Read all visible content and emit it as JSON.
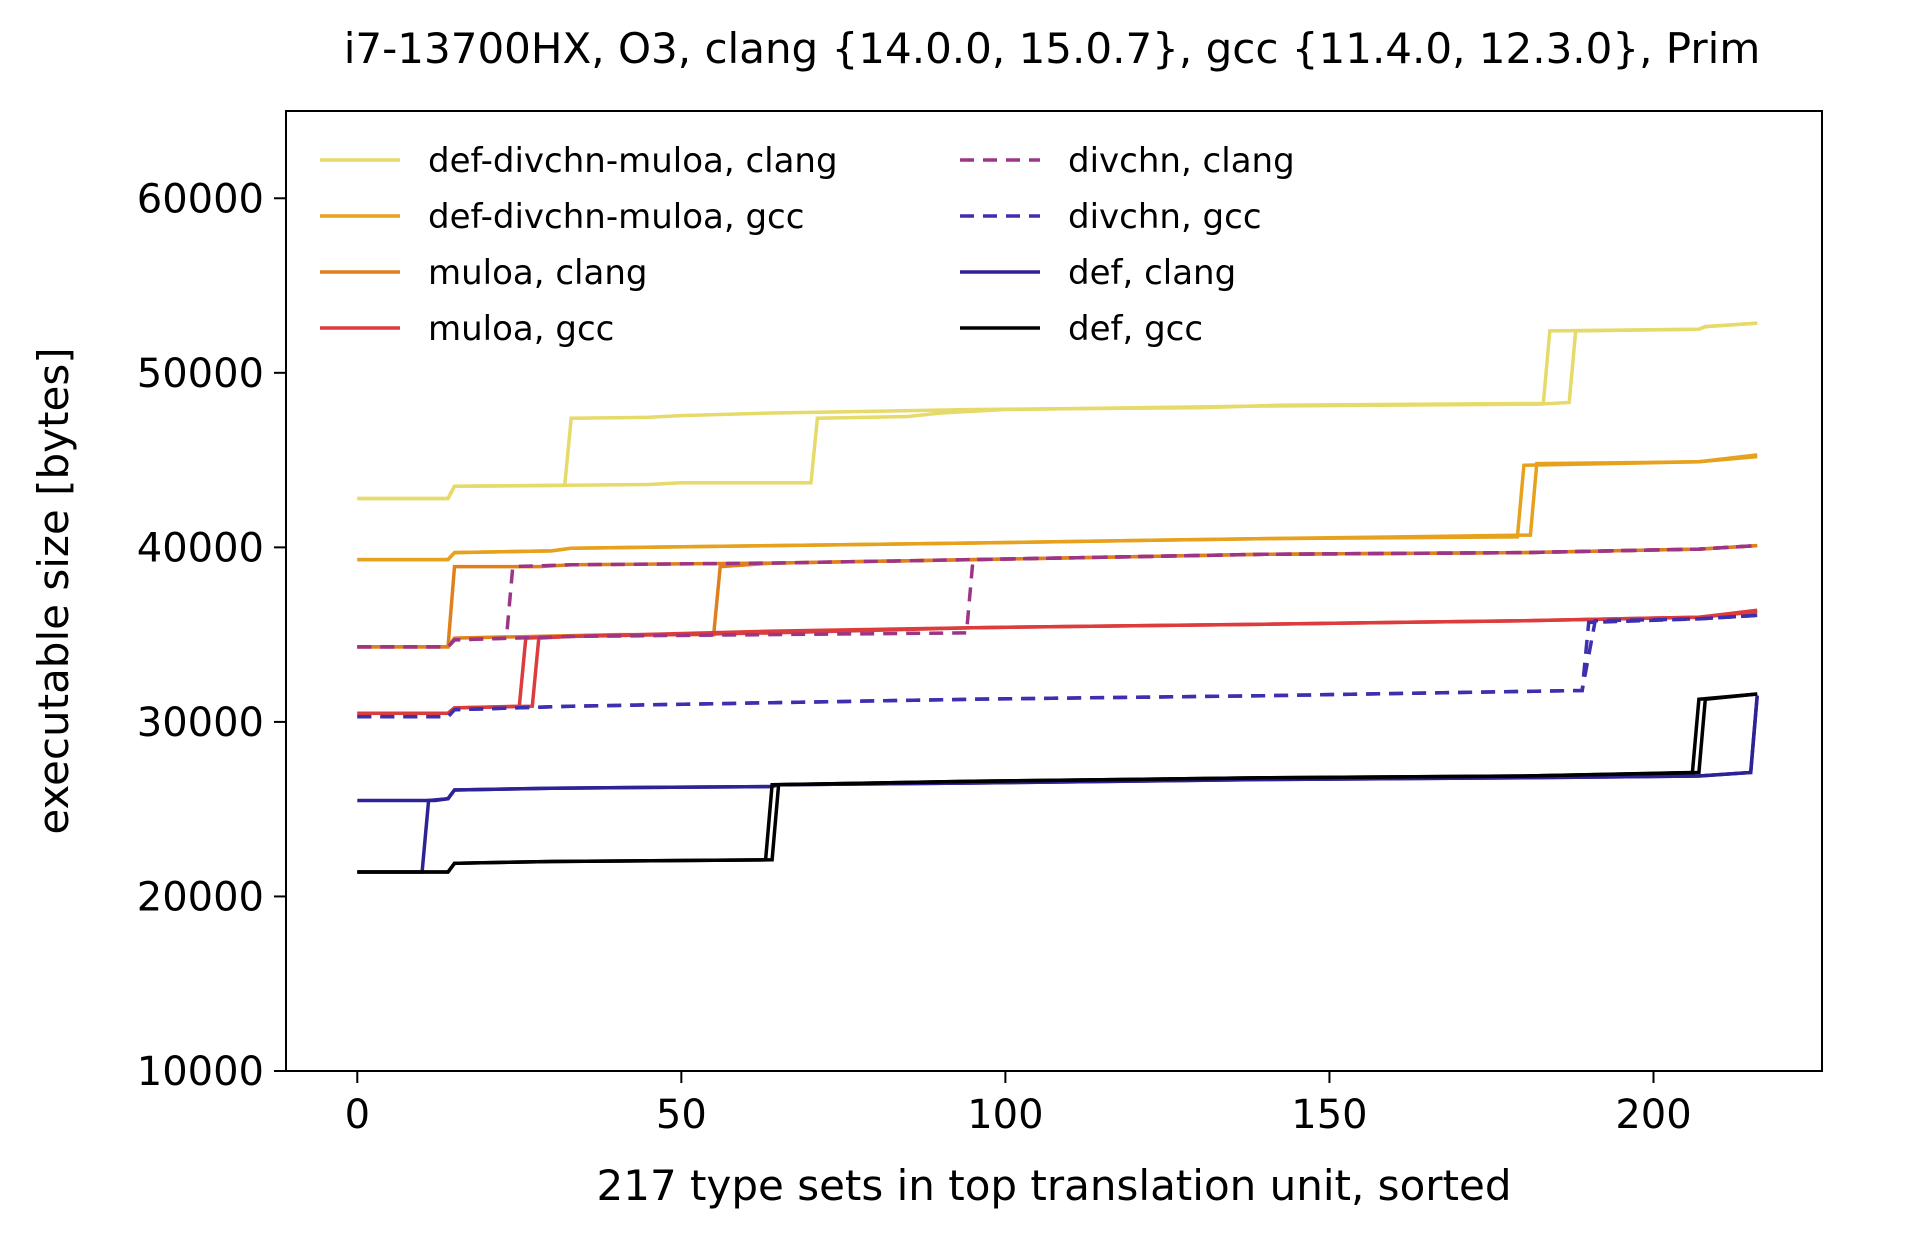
{
  "chart_data": {
    "type": "line",
    "title": "i7-13700HX, O3, clang {14.0.0, 15.0.7}, gcc {11.4.0, 12.3.0}, Prim",
    "xlabel": "217 type sets in top translation unit, sorted",
    "ylabel": "executable size [bytes]",
    "xlim": [
      -11,
      226
    ],
    "ylim": [
      10000,
      65000
    ],
    "xticks": [
      0,
      50,
      100,
      150,
      200
    ],
    "yticks": [
      10000,
      20000,
      30000,
      40000,
      50000,
      60000
    ],
    "grid": false,
    "legend": {
      "placement": "top-left",
      "columns": 2
    },
    "series": [
      {
        "name": "def-divchn-muloa, clang",
        "color": "#e6da6a",
        "dash": false,
        "points": [
          [
            0,
            42800
          ],
          [
            14,
            42800
          ],
          [
            15,
            43500
          ],
          [
            32,
            43550
          ],
          [
            33,
            47400
          ],
          [
            45,
            47450
          ],
          [
            50,
            47550
          ],
          [
            64,
            47700
          ],
          [
            95,
            47900
          ],
          [
            130,
            48000
          ],
          [
            143,
            48150
          ],
          [
            183,
            48250
          ],
          [
            184,
            52400
          ],
          [
            207,
            52500
          ],
          [
            208,
            52650
          ],
          [
            216,
            52850
          ]
        ]
      },
      {
        "name": "def-divchn-muloa, clang",
        "color": "#e6da6a",
        "dash": false,
        "points": [
          [
            0,
            42800
          ],
          [
            14,
            42800
          ],
          [
            15,
            43500
          ],
          [
            45,
            43600
          ],
          [
            50,
            43700
          ],
          [
            70,
            43700
          ],
          [
            71,
            47400
          ],
          [
            85,
            47500
          ],
          [
            90,
            47700
          ],
          [
            100,
            47900
          ],
          [
            140,
            48100
          ],
          [
            182,
            48200
          ],
          [
            187,
            48300
          ],
          [
            188,
            52400
          ],
          [
            207,
            52500
          ],
          [
            208,
            52650
          ],
          [
            216,
            52850
          ]
        ]
      },
      {
        "name": "def-divchn-muloa, gcc",
        "color": "#e6a21e",
        "dash": false,
        "points": [
          [
            0,
            39300
          ],
          [
            14,
            39300
          ],
          [
            15,
            39700
          ],
          [
            30,
            39800
          ],
          [
            33,
            39950
          ],
          [
            64,
            40100
          ],
          [
            95,
            40250
          ],
          [
            140,
            40500
          ],
          [
            179,
            40600
          ],
          [
            180,
            44700
          ],
          [
            207,
            44900
          ],
          [
            216,
            45200
          ]
        ]
      },
      {
        "name": "def-divchn-muloa, gcc",
        "color": "#e6a21e",
        "dash": false,
        "points": [
          [
            0,
            39300
          ],
          [
            14,
            39300
          ],
          [
            15,
            39700
          ],
          [
            30,
            39800
          ],
          [
            33,
            39950
          ],
          [
            64,
            40100
          ],
          [
            95,
            40250
          ],
          [
            140,
            40500
          ],
          [
            181,
            40700
          ],
          [
            182,
            44800
          ],
          [
            207,
            44900
          ],
          [
            216,
            45300
          ]
        ]
      },
      {
        "name": "muloa, clang",
        "color": "#e0801c",
        "dash": false,
        "points": [
          [
            0,
            34300
          ],
          [
            14,
            34300
          ],
          [
            15,
            38900
          ],
          [
            28,
            38900
          ],
          [
            33,
            39000
          ],
          [
            64,
            39100
          ],
          [
            95,
            39300
          ],
          [
            140,
            39600
          ],
          [
            180,
            39700
          ],
          [
            207,
            39900
          ],
          [
            216,
            40100
          ]
        ]
      },
      {
        "name": "muloa, clang",
        "color": "#e0801c",
        "dash": false,
        "points": [
          [
            0,
            34300
          ],
          [
            14,
            34300
          ],
          [
            15,
            34800
          ],
          [
            40,
            35000
          ],
          [
            55,
            35000
          ],
          [
            56,
            38900
          ],
          [
            64,
            39100
          ],
          [
            95,
            39300
          ],
          [
            140,
            39600
          ],
          [
            180,
            39700
          ],
          [
            207,
            39900
          ],
          [
            216,
            40100
          ]
        ]
      },
      {
        "name": "muloa, gcc",
        "color": "#dd3c3c",
        "dash": false,
        "points": [
          [
            0,
            30500
          ],
          [
            14,
            30500
          ],
          [
            15,
            30800
          ],
          [
            25,
            30900
          ],
          [
            26,
            34800
          ],
          [
            33,
            34900
          ],
          [
            64,
            35100
          ],
          [
            95,
            35400
          ],
          [
            140,
            35600
          ],
          [
            180,
            35800
          ],
          [
            207,
            36000
          ],
          [
            216,
            36300
          ]
        ]
      },
      {
        "name": "muloa, gcc",
        "color": "#dd3c3c",
        "dash": false,
        "points": [
          [
            0,
            30500
          ],
          [
            14,
            30500
          ],
          [
            15,
            30800
          ],
          [
            27,
            30900
          ],
          [
            28,
            34800
          ],
          [
            33,
            34900
          ],
          [
            64,
            35200
          ],
          [
            95,
            35400
          ],
          [
            140,
            35600
          ],
          [
            180,
            35800
          ],
          [
            207,
            36000
          ],
          [
            216,
            36400
          ]
        ]
      },
      {
        "name": "divchn, clang",
        "color": "#9c3585",
        "dash": true,
        "points": [
          [
            0,
            34300
          ],
          [
            14,
            34300
          ],
          [
            15,
            34700
          ],
          [
            23,
            34800
          ],
          [
            24,
            38900
          ],
          [
            33,
            39000
          ],
          [
            64,
            39100
          ],
          [
            95,
            39300
          ],
          [
            140,
            39600
          ],
          [
            180,
            39700
          ],
          [
            207,
            39900
          ],
          [
            216,
            40100
          ]
        ]
      },
      {
        "name": "divchn, clang",
        "color": "#9c3585",
        "dash": true,
        "points": [
          [
            0,
            34300
          ],
          [
            14,
            34300
          ],
          [
            15,
            34700
          ],
          [
            33,
            34900
          ],
          [
            64,
            35000
          ],
          [
            94,
            35100
          ],
          [
            95,
            39300
          ],
          [
            140,
            39600
          ],
          [
            180,
            39700
          ],
          [
            207,
            39900
          ],
          [
            216,
            40100
          ]
        ]
      },
      {
        "name": "divchn, gcc",
        "color": "#3d2fb0",
        "dash": true,
        "points": [
          [
            0,
            30300
          ],
          [
            14,
            30300
          ],
          [
            15,
            30700
          ],
          [
            33,
            30900
          ],
          [
            64,
            31100
          ],
          [
            95,
            31300
          ],
          [
            140,
            31500
          ],
          [
            189,
            31800
          ],
          [
            190,
            35700
          ],
          [
            207,
            35900
          ],
          [
            216,
            36100
          ]
        ]
      },
      {
        "name": "divchn, gcc",
        "color": "#3d2fb0",
        "dash": true,
        "points": [
          [
            0,
            30300
          ],
          [
            14,
            30300
          ],
          [
            15,
            30700
          ],
          [
            33,
            30900
          ],
          [
            64,
            31100
          ],
          [
            95,
            31300
          ],
          [
            140,
            31500
          ],
          [
            189,
            31800
          ],
          [
            191,
            35800
          ],
          [
            207,
            35900
          ],
          [
            216,
            36100
          ]
        ]
      },
      {
        "name": "def, clang",
        "color": "#2d2396",
        "dash": false,
        "points": [
          [
            0,
            25500
          ],
          [
            12,
            25500
          ],
          [
            14,
            25600
          ],
          [
            15,
            26100
          ],
          [
            30,
            26200
          ],
          [
            64,
            26300
          ],
          [
            65,
            26400
          ],
          [
            95,
            26500
          ],
          [
            140,
            26700
          ],
          [
            180,
            26800
          ],
          [
            207,
            26900
          ],
          [
            215,
            27100
          ],
          [
            216,
            31500
          ]
        ]
      },
      {
        "name": "def, clang",
        "color": "#2d2396",
        "dash": false,
        "points": [
          [
            0,
            21400
          ],
          [
            10,
            21400
          ],
          [
            11,
            25500
          ],
          [
            14,
            25600
          ],
          [
            15,
            26100
          ],
          [
            30,
            26200
          ],
          [
            64,
            26300
          ],
          [
            65,
            26400
          ],
          [
            95,
            26500
          ],
          [
            140,
            26700
          ],
          [
            180,
            26800
          ],
          [
            207,
            26900
          ],
          [
            215,
            27100
          ],
          [
            216,
            31500
          ]
        ]
      },
      {
        "name": "def, gcc",
        "color": "#000000",
        "dash": false,
        "points": [
          [
            0,
            21400
          ],
          [
            14,
            21400
          ],
          [
            15,
            21900
          ],
          [
            30,
            22000
          ],
          [
            63,
            22100
          ],
          [
            64,
            26400
          ],
          [
            95,
            26600
          ],
          [
            140,
            26800
          ],
          [
            180,
            26900
          ],
          [
            206,
            27100
          ],
          [
            207,
            31300
          ],
          [
            216,
            31600
          ]
        ]
      },
      {
        "name": "def, gcc",
        "color": "#000000",
        "dash": false,
        "points": [
          [
            0,
            21400
          ],
          [
            14,
            21400
          ],
          [
            15,
            21900
          ],
          [
            30,
            22000
          ],
          [
            64,
            22100
          ],
          [
            65,
            26400
          ],
          [
            95,
            26600
          ],
          [
            140,
            26800
          ],
          [
            180,
            26900
          ],
          [
            207,
            27100
          ],
          [
            208,
            31300
          ],
          [
            216,
            31600
          ]
        ]
      }
    ],
    "legend_entries": [
      {
        "label": "def-divchn-muloa, clang",
        "color": "#e6da6a",
        "dash": false
      },
      {
        "label": "def-divchn-muloa, gcc",
        "color": "#e6a21e",
        "dash": false
      },
      {
        "label": "muloa, clang",
        "color": "#e0801c",
        "dash": false
      },
      {
        "label": "muloa, gcc",
        "color": "#dd3c3c",
        "dash": false
      },
      {
        "label": "divchn, clang",
        "color": "#9c3585",
        "dash": true
      },
      {
        "label": "divchn, gcc",
        "color": "#3d2fb0",
        "dash": true
      },
      {
        "label": "def, clang",
        "color": "#2d2396",
        "dash": false
      },
      {
        "label": "def, gcc",
        "color": "#000000",
        "dash": false
      }
    ]
  }
}
